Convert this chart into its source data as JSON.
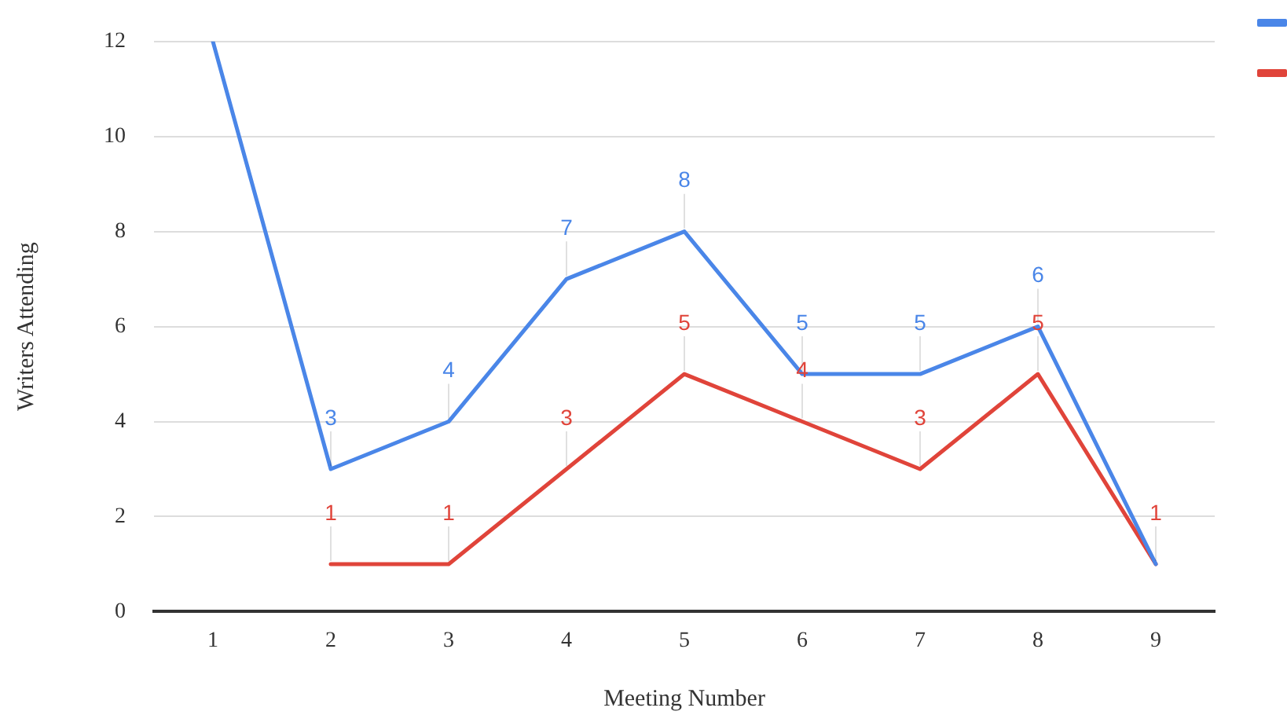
{
  "chart_data": {
    "type": "line",
    "xlabel": "Meeting Number",
    "ylabel": "Writers Attending",
    "categories": [
      "1",
      "2",
      "3",
      "4",
      "5",
      "6",
      "7",
      "8",
      "9"
    ],
    "series": [
      {
        "color": "#4a86e8",
        "values": [
          12,
          3,
          4,
          7,
          8,
          5,
          5,
          6,
          1
        ],
        "value_labels": [
          null,
          "3",
          "4",
          "7",
          "8",
          "5",
          "5",
          "6",
          null
        ]
      },
      {
        "color": "#e0443a",
        "values": [
          null,
          1,
          1,
          3,
          5,
          4,
          3,
          5,
          1
        ],
        "value_labels": [
          null,
          "1",
          "1",
          "3",
          "5",
          "4",
          "3",
          "5",
          "1"
        ]
      }
    ],
    "ylim": [
      0,
      12
    ],
    "yticks": [
      0,
      2,
      4,
      6,
      8,
      10,
      12
    ],
    "grid": "y",
    "marker": "none",
    "line_style": "solid"
  }
}
